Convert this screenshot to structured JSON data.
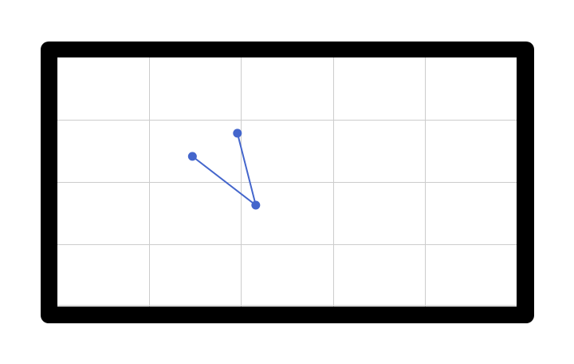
{
  "canvas": {
    "grid_color": "#cccccc",
    "background_color": "#ffffff",
    "frame_color": "#000000",
    "grid_columns": 5,
    "grid_rows": 4
  },
  "polyline": {
    "color": "#4466cc",
    "points": [
      {
        "id": "point-1",
        "x": 0.294,
        "y": 0.397
      },
      {
        "id": "point-2",
        "x": 0.432,
        "y": 0.593
      },
      {
        "id": "point-3",
        "x": 0.392,
        "y": 0.304
      }
    ]
  }
}
